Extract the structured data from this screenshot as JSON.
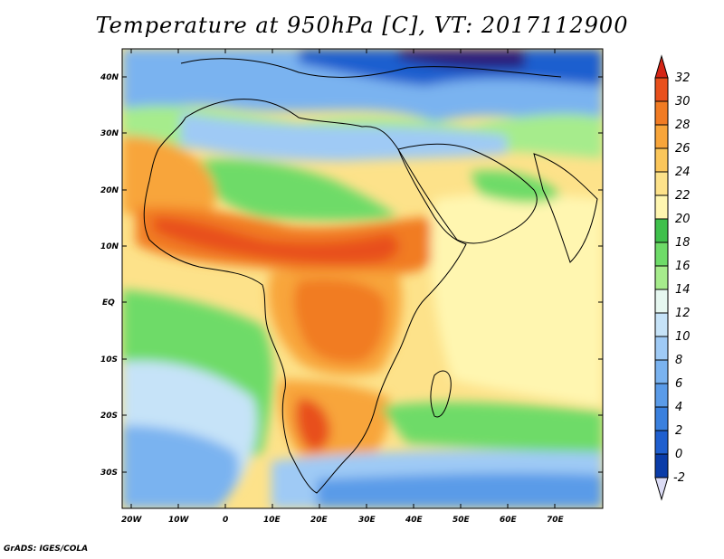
{
  "title": "Temperature at 950hPa [C], VT: 2017112900",
  "credit": "GrADS: IGES/COLA",
  "map": {
    "lat_ticks": [
      "40N",
      "30N",
      "20N",
      "10N",
      "EQ",
      "10S",
      "20S",
      "30S"
    ],
    "lon_ticks": [
      "20W",
      "10W",
      "0",
      "10E",
      "20E",
      "30E",
      "40E",
      "50E",
      "60E",
      "70E"
    ],
    "lat_tick_values": [
      40,
      30,
      20,
      10,
      0,
      -10,
      -20,
      -30
    ],
    "lon_tick_values": [
      -20,
      -10,
      0,
      10,
      20,
      30,
      40,
      50,
      60,
      70
    ],
    "lat_range": [
      -37,
      45
    ],
    "lon_range": [
      -22,
      80
    ]
  },
  "colorbar": {
    "labels": [
      "32",
      "30",
      "28",
      "26",
      "24",
      "22",
      "20",
      "18",
      "16",
      "14",
      "12",
      "10",
      "8",
      "6",
      "4",
      "2",
      "0",
      "-2"
    ],
    "colors": [
      "#2a1b7a",
      "#0a3ca8",
      "#1f5fcf",
      "#3a80de",
      "#5a9be8",
      "#7ab3f0",
      "#9fcaf5",
      "#c6e3f8",
      "#e6f7f0",
      "#a6ec8c",
      "#6edb68",
      "#3fc04b",
      "#fff6b0",
      "#fde28a",
      "#fbc65a",
      "#f8a53a",
      "#f17b23",
      "#e8501c",
      "#d42516"
    ]
  }
}
